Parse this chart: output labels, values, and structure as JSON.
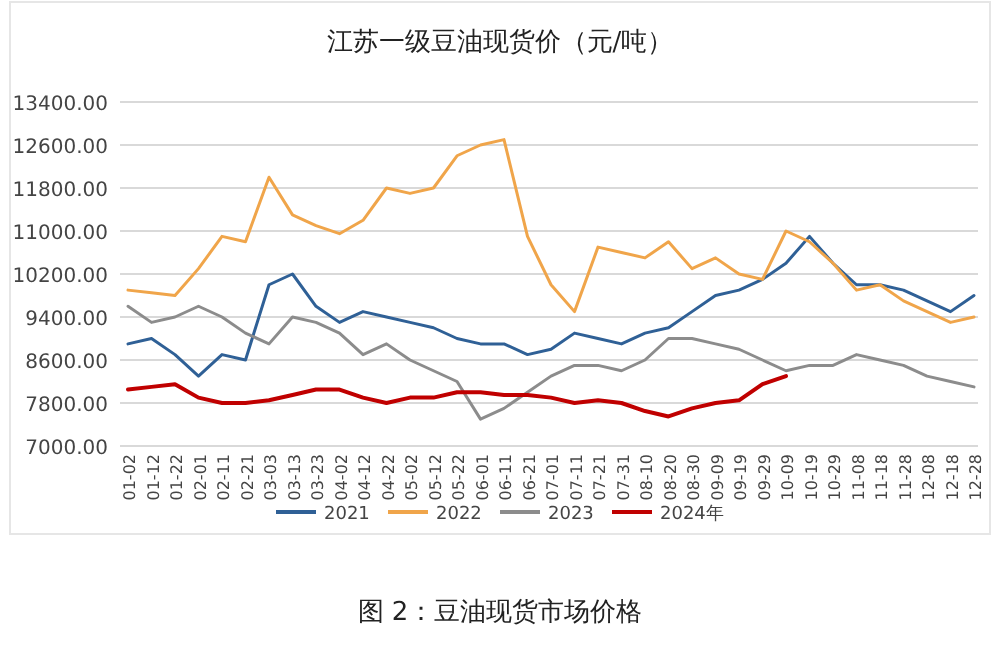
{
  "chart_data": {
    "type": "line",
    "title": "江苏一级豆油现货价（元/吨）",
    "categories": [
      "01-02",
      "01-12",
      "01-22",
      "02-01",
      "02-11",
      "02-21",
      "03-03",
      "03-13",
      "03-23",
      "04-02",
      "04-12",
      "04-22",
      "05-02",
      "05-12",
      "05-22",
      "06-01",
      "06-11",
      "06-21",
      "07-01",
      "07-11",
      "07-21",
      "07-31",
      "08-10",
      "08-20",
      "08-30",
      "09-09",
      "09-19",
      "09-29",
      "10-09",
      "10-19",
      "10-29",
      "11-08",
      "11-18",
      "11-28",
      "12-08",
      "12-18",
      "12-28"
    ],
    "series": [
      {
        "name": "2021",
        "color": "#2f6096",
        "values": [
          8900,
          9000,
          8700,
          8300,
          8700,
          8600,
          10000,
          10200,
          9600,
          9300,
          9500,
          9400,
          9300,
          9200,
          9000,
          8900,
          8900,
          8700,
          8800,
          9100,
          9000,
          8900,
          9100,
          9200,
          9500,
          9800,
          9900,
          10100,
          10400,
          10900,
          10400,
          10000,
          10000,
          9900,
          9700,
          9500,
          9800
        ]
      },
      {
        "name": "2022",
        "color": "#f0a54a",
        "values": [
          9900,
          9850,
          9800,
          10300,
          10900,
          10800,
          12000,
          11300,
          11100,
          10950,
          11200,
          11800,
          11700,
          11800,
          12400,
          12600,
          12700,
          10900,
          10000,
          9500,
          10700,
          10600,
          10500,
          10800,
          10300,
          10500,
          10200,
          10100,
          11000,
          10800,
          10400,
          9900,
          10000,
          9700,
          9500,
          9300,
          9400
        ]
      },
      {
        "name": "2023",
        "color": "#8c8c8c",
        "values": [
          9600,
          9300,
          9400,
          9600,
          9400,
          9100,
          8900,
          9400,
          9300,
          9100,
          8700,
          8900,
          8600,
          8400,
          8200,
          7500,
          7700,
          8000,
          8300,
          8500,
          8500,
          8400,
          8600,
          9000,
          9000,
          8900,
          8800,
          8600,
          8400,
          8500,
          8500,
          8700,
          8600,
          8500,
          8300,
          8200,
          8100
        ]
      },
      {
        "name": "2024年",
        "color": "#c00000",
        "values": [
          8050,
          8100,
          8150,
          7900,
          7800,
          7800,
          7850,
          7950,
          8050,
          8050,
          7900,
          7800,
          7900,
          7900,
          8000,
          8000,
          7950,
          7950,
          7900,
          7800,
          7850,
          7800,
          7650,
          7550,
          7700,
          7800,
          7850,
          8150,
          8300,
          null,
          null,
          null,
          null,
          null,
          null,
          null,
          null
        ]
      }
    ],
    "ylim": [
      7000,
      13400
    ],
    "yticks": [
      {
        "value": 7000,
        "label": "7000.00"
      },
      {
        "value": 7800,
        "label": "7800.00"
      },
      {
        "value": 8600,
        "label": "8600.00"
      },
      {
        "value": 9400,
        "label": "9400.00"
      },
      {
        "value": 10200,
        "label": "10200.00"
      },
      {
        "value": 11000,
        "label": "11000.00"
      },
      {
        "value": 11800,
        "label": "11800.00"
      },
      {
        "value": 12600,
        "label": "12600.00"
      },
      {
        "value": 13400,
        "label": "13400.00"
      }
    ],
    "grid": "y",
    "legend": "bottom",
    "annotations": [
      "图 2：豆油现货市场价格"
    ]
  }
}
